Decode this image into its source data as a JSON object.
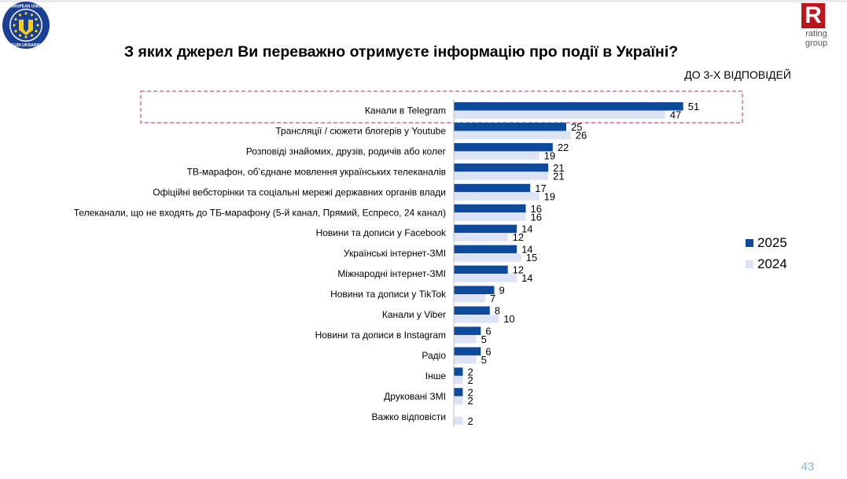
{
  "header": {
    "title": "З яких джерел Ви переважно отримуєте інформацію про події в Україні?",
    "subtitle": "ДО 3-Х ВІДПОВІДЕЙ",
    "eu_logo_text_top": "EUROPEAN UNION",
    "eu_logo_text_bottom": "EUDI UKRAINE",
    "rating_logo_letter": "R",
    "rating_logo_line1": "rating",
    "rating_logo_line2": "group"
  },
  "page_number": "43",
  "colors": {
    "series_2025": "#0d4a9c",
    "series_2024": "#dce3f5",
    "highlight_border": "#c9527b",
    "page_number": "#8fb3d9",
    "brand_red": "#c0141c"
  },
  "chart_data": {
    "type": "bar",
    "orientation": "horizontal",
    "categories": [
      "Канали в Telegram",
      "Трансляції / сюжети блогерів у Youtube",
      "Розповіді знайомих, друзів, родичів або колег",
      "ТВ-марафон, об’єднане мовлення українських телеканалів",
      "Офіційні вебсторінки та соціальні мережі державних органів влади",
      "Телеканали, що не входять до ТБ-марафону (5-й канал, Прямий, Еспресо, 24 канал)",
      "Новини та дописи у Facebook",
      "Українські інтернет-ЗМІ",
      "Міжнародні інтернет-ЗМІ",
      "Новини та дописи у TikTok",
      "Канали у Viber",
      "Новини та дописи в Instagram",
      "Радіо",
      "Інше",
      "Друковані ЗМІ",
      "Важко відповісти"
    ],
    "series": [
      {
        "name": "2025",
        "values": [
          51,
          25,
          22,
          21,
          17,
          16,
          14,
          14,
          12,
          9,
          8,
          6,
          6,
          2,
          2,
          null
        ]
      },
      {
        "name": "2024",
        "values": [
          47,
          26,
          19,
          21,
          19,
          16,
          12,
          15,
          14,
          7,
          10,
          5,
          5,
          2,
          2,
          2
        ]
      }
    ],
    "xlim": [
      0,
      60
    ],
    "grid": false,
    "legend_position": "right",
    "highlighted_category": "Канали в Telegram"
  }
}
